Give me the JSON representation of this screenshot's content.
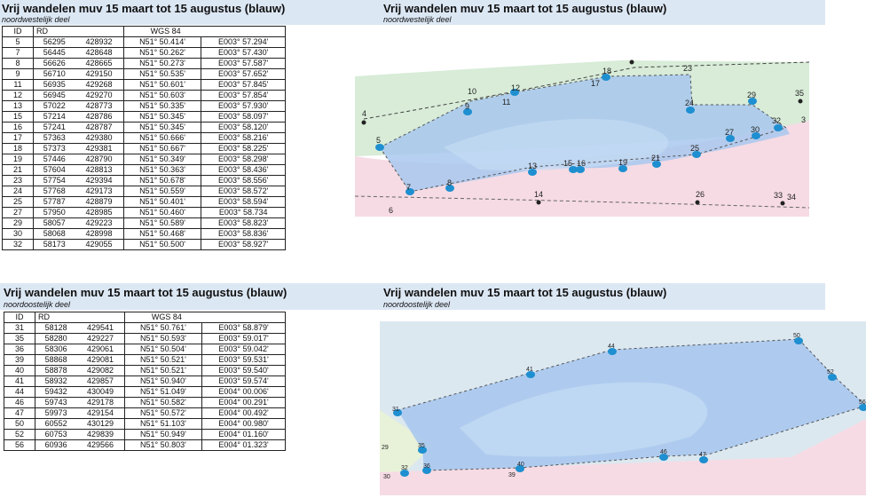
{
  "top_left": {
    "title": "Vrij wandelen muv 15 maart tot 15 augustus (blauw)",
    "subtitle": "noordwestelijk deel",
    "headers": {
      "id": "ID",
      "rd": "RD",
      "wgs": "WGS 84"
    },
    "rows": [
      [
        "5",
        "56295",
        "428932",
        "N51° 50.414'",
        "E003° 57.294'"
      ],
      [
        "7",
        "56445",
        "428648",
        "N51° 50.262'",
        "E003° 57.430'"
      ],
      [
        "8",
        "56626",
        "428665",
        "N51° 50.273'",
        "E003° 57.587'"
      ],
      [
        "9",
        "56710",
        "429150",
        "N51° 50.535'",
        "E003° 57.652'"
      ],
      [
        "11",
        "56935",
        "429268",
        "N51° 50.601'",
        "E003° 57.845'"
      ],
      [
        "12",
        "56945",
        "429270",
        "N51° 50.603'",
        "E003° 57.854'"
      ],
      [
        "13",
        "57022",
        "428773",
        "N51° 50.335'",
        "E003° 57.930'"
      ],
      [
        "15",
        "57214",
        "428786",
        "N51° 50.345'",
        "E003° 58.097'"
      ],
      [
        "16",
        "57241",
        "428787",
        "N51° 50.345'",
        "E003° 58.120'"
      ],
      [
        "17",
        "57363",
        "429380",
        "N51° 50.666'",
        "E003° 58.216'"
      ],
      [
        "18",
        "57373",
        "429381",
        "N51° 50.667'",
        "E003° 58.225'"
      ],
      [
        "19",
        "57446",
        "428790",
        "N51° 50.349'",
        "E003° 58.298'"
      ],
      [
        "21",
        "57604",
        "428813",
        "N51° 50.363'",
        "E003° 58.436'"
      ],
      [
        "23",
        "57754",
        "429394",
        "N51° 50.678'",
        "E003° 58.556'"
      ],
      [
        "24",
        "57768",
        "429173",
        "N51° 50.559'",
        "E003° 58.572'"
      ],
      [
        "25",
        "57787",
        "428879",
        "N51° 50.401'",
        "E003° 58.594'"
      ],
      [
        "27",
        "57950",
        "428985",
        "N51° 50.460'",
        "E003° 58.734"
      ],
      [
        "29",
        "58057",
        "429223",
        "N51° 50.589'",
        "E003° 58.823'"
      ],
      [
        "30",
        "58068",
        "428998",
        "N51° 50.468'",
        "E003° 58.836'"
      ],
      [
        "32",
        "58173",
        "429055",
        "N51° 50.500'",
        "E003° 58.927'"
      ]
    ]
  },
  "bottom_left": {
    "title": "Vrij wandelen muv 15 maart tot 15 augustus (blauw)",
    "subtitle": "noordoostelijk deel",
    "headers": {
      "id": "ID",
      "rd": "RD",
      "wgs": "WGS 84"
    },
    "rows": [
      [
        "31",
        "58128",
        "429541",
        "N51° 50.761'",
        "E003° 58.879'"
      ],
      [
        "35",
        "58280",
        "429227",
        "N51° 50.593'",
        "E003° 59.017'"
      ],
      [
        "36",
        "58306",
        "429061",
        "N51° 50.504'",
        "E003° 59.042'"
      ],
      [
        "39",
        "58868",
        "429081",
        "N51° 50.521'",
        "E003° 59.531'"
      ],
      [
        "40",
        "58878",
        "429082",
        "N51° 50.521'",
        "E003° 59.540'"
      ],
      [
        "41",
        "58932",
        "429857",
        "N51° 50.940'",
        "E003° 59.574'"
      ],
      [
        "44",
        "59432",
        "430049",
        "N51° 51.049'",
        "E004° 00.006'"
      ],
      [
        "46",
        "59743",
        "429178",
        "N51° 50.582'",
        "E004° 00.291'"
      ],
      [
        "47",
        "59973",
        "429154",
        "N51° 50.572'",
        "E004° 00.492'"
      ],
      [
        "50",
        "60552",
        "430129",
        "N51° 51.103'",
        "E004° 00.980'"
      ],
      [
        "52",
        "60753",
        "429839",
        "N51° 50.949'",
        "E004° 01.160'"
      ],
      [
        "56",
        "60936",
        "429566",
        "N51° 50.803'",
        "E004° 01.323'"
      ]
    ]
  },
  "top_right": {
    "title": "Vrij wandelen muv 15 maart tot 15 augustus (blauw)",
    "subtitle": "noordwestelijk deel",
    "labels": [
      "4",
      "5",
      "6",
      "7",
      "8",
      "9",
      "10",
      "11",
      "12",
      "13",
      "14",
      "15",
      "16",
      "17",
      "18",
      "19",
      "21",
      "23",
      "24",
      "25",
      "26",
      "27",
      "29",
      "30",
      "32",
      "33",
      "34",
      "35",
      "3"
    ]
  },
  "bottom_right": {
    "title": "Vrij wandelen muv 15 maart tot 15 augustus (blauw)",
    "subtitle": "noordoostelijk deel",
    "labels": [
      "29",
      "30",
      "31",
      "32",
      "35",
      "36",
      "39",
      "40",
      "41",
      "44",
      "46",
      "47",
      "50",
      "52",
      "56"
    ]
  },
  "colors": {
    "band": "#dce7f4",
    "water": "#a8c8ee",
    "land_green": "#d8ecd8",
    "land_pink": "#f6dbe4",
    "marker": "#1e8fd0"
  }
}
